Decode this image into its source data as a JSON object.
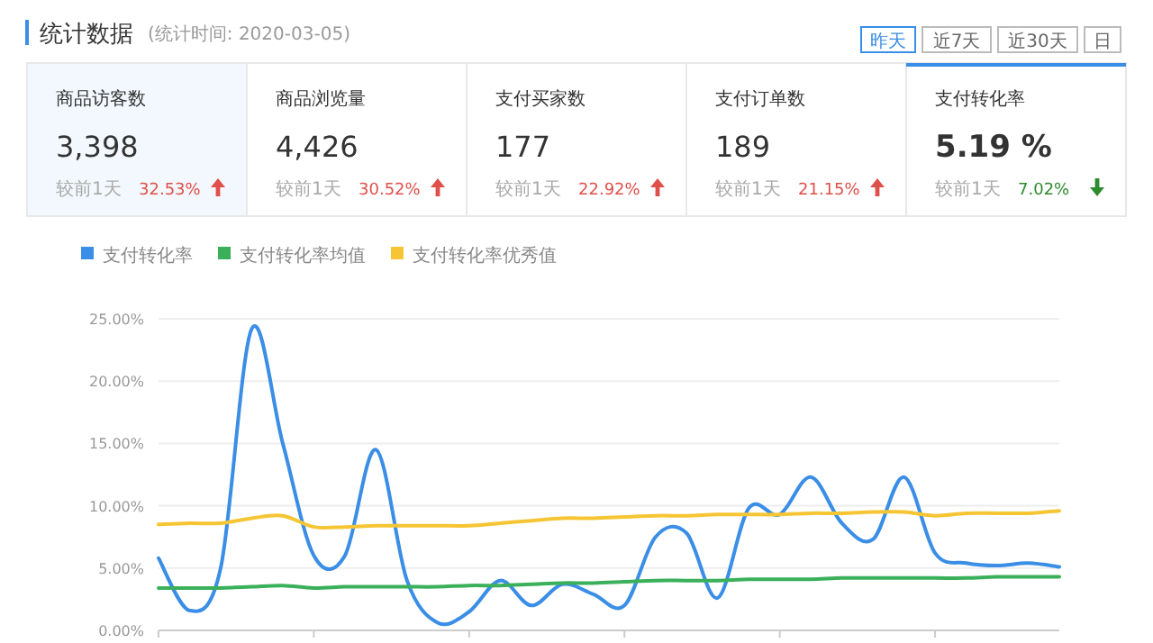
{
  "chart_data": [
    {
      "type": "other",
      "title": "统计数据",
      "subtitle": "(统计时间: 2020-03-05)",
      "annotations": [
        "昨天",
        "近7天",
        "近30天",
        "日",
        "商品访客数",
        "3,398",
        "较前1天",
        "32.53%",
        "商品浏览量",
        "4,426",
        "较前1天",
        "30.52%",
        "支付买家数",
        "177",
        "较前1天",
        "22.92%",
        "支付订单数",
        "189",
        "较前1天",
        "21.15%",
        "支付转化率",
        "5.19 %",
        "较前1天",
        "7.02%"
      ]
    },
    {
      "type": "line",
      "legend": "top left",
      "grid": "y",
      "marker": "none",
      "line_style": "solid",
      "ylim": [
        0,
        25
      ],
      "yticks": [
        {
          "value": 0,
          "label": "0.00%"
        },
        {
          "value": 5,
          "label": "5.00%"
        },
        {
          "value": 10,
          "label": "10.00%"
        },
        {
          "value": 15,
          "label": "15.00%"
        },
        {
          "value": 20,
          "label": "20.00%"
        },
        {
          "value": 25,
          "label": "25.00%"
        }
      ],
      "categories": [
        null,
        null,
        null,
        null,
        null,
        null,
        null,
        null,
        null,
        null,
        null,
        null,
        null,
        null,
        null,
        null,
        null,
        null,
        null,
        null,
        null,
        null,
        null,
        null,
        null,
        null,
        null,
        null,
        null,
        null
      ],
      "series": [
        {
          "name": "支付转化率",
          "color": "#3a8ee6",
          "values": [
            5.8,
            1.6,
            5.0,
            24.2,
            15.0,
            6.0,
            6.0,
            14.5,
            4.0,
            0.6,
            1.5,
            4.0,
            2.0,
            3.7,
            2.9,
            2.0,
            7.5,
            7.8,
            2.6,
            9.8,
            9.3,
            12.3,
            8.6,
            7.3,
            12.3,
            6.2,
            5.4,
            5.2,
            5.4,
            5.1
          ]
        },
        {
          "name": "支付转化率均值",
          "color": "#3bb05a",
          "values": [
            3.4,
            3.4,
            3.4,
            3.5,
            3.6,
            3.4,
            3.5,
            3.5,
            3.5,
            3.5,
            3.6,
            3.6,
            3.7,
            3.8,
            3.8,
            3.9,
            4.0,
            4.0,
            4.0,
            4.1,
            4.1,
            4.1,
            4.2,
            4.2,
            4.2,
            4.2,
            4.2,
            4.3,
            4.3,
            4.3
          ]
        },
        {
          "name": "支付转化率优秀值",
          "color": "#f5c533",
          "values": [
            8.5,
            8.6,
            8.6,
            9.0,
            9.2,
            8.3,
            8.3,
            8.4,
            8.4,
            8.4,
            8.4,
            8.6,
            8.8,
            9.0,
            9.0,
            9.1,
            9.2,
            9.2,
            9.3,
            9.3,
            9.3,
            9.4,
            9.4,
            9.5,
            9.5,
            9.2,
            9.4,
            9.4,
            9.4,
            9.6
          ]
        }
      ]
    }
  ]
}
